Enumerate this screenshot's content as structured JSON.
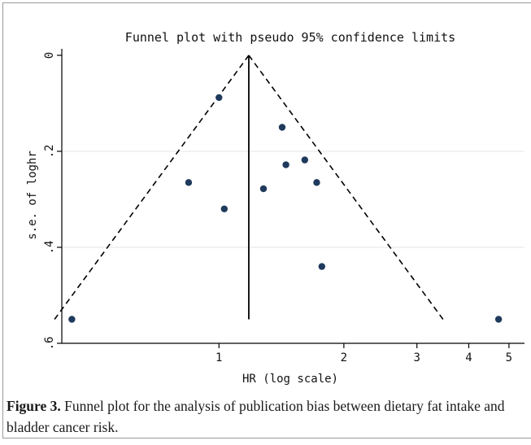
{
  "chart_data": {
    "type": "scatter",
    "title": "Funnel plot with pseudo 95% confidence limits",
    "xlabel": "HR (log scale)",
    "ylabel": "s.e. of loghr",
    "x_scale": "log",
    "y_reversed": true,
    "xlim": [
      0.418,
      5.45
    ],
    "ylim": [
      0,
      0.6
    ],
    "x_ticks": [
      {
        "value": 1,
        "label": "1"
      },
      {
        "value": 2,
        "label": "2"
      },
      {
        "value": 3,
        "label": "3"
      },
      {
        "value": 4,
        "label": "4"
      },
      {
        "value": 5,
        "label": "5"
      }
    ],
    "y_ticks": [
      {
        "value": 0,
        "label": "0"
      },
      {
        "value": 0.2,
        "label": ".2"
      },
      {
        "value": 0.4,
        "label": ".4"
      },
      {
        "value": 0.6,
        "label": ".6"
      }
    ],
    "grid": "horizontal",
    "pooled_hr": 1.18,
    "funnel_se_max": 0.55,
    "points": [
      {
        "x": 0.442,
        "y": 0.55
      },
      {
        "x": 0.845,
        "y": 0.265
      },
      {
        "x": 1.0,
        "y": 0.088
      },
      {
        "x": 1.03,
        "y": 0.32
      },
      {
        "x": 1.28,
        "y": 0.278
      },
      {
        "x": 1.42,
        "y": 0.15
      },
      {
        "x": 1.45,
        "y": 0.228
      },
      {
        "x": 1.61,
        "y": 0.218
      },
      {
        "x": 1.72,
        "y": 0.265
      },
      {
        "x": 1.77,
        "y": 0.44
      },
      {
        "x": 4.72,
        "y": 0.55
      }
    ],
    "colors": {
      "point": "#1f3a5c",
      "line": "#000000",
      "grid": "#e6e6e6"
    }
  },
  "caption": {
    "label": "Figure 3.",
    "text": " Funnel plot for the analysis of publication bias between dietary fat intake and bladder cancer risk."
  }
}
